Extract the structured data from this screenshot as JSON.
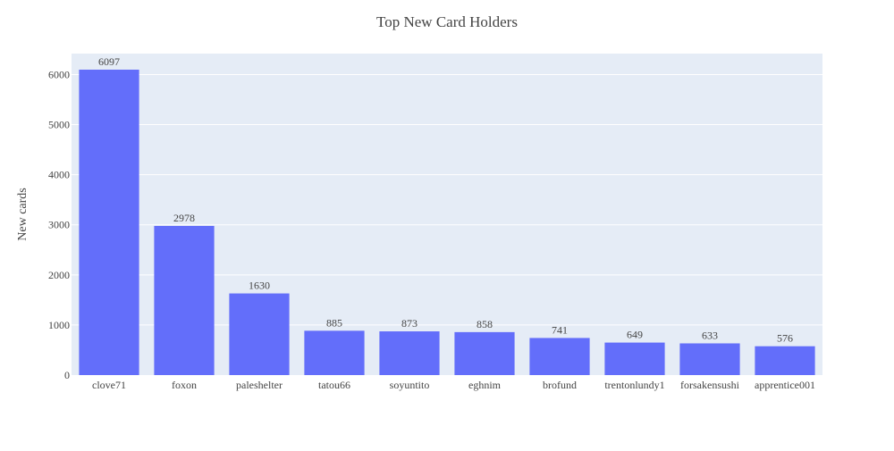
{
  "chart_data": {
    "type": "bar",
    "title": "Top New Card Holders",
    "xlabel": "",
    "ylabel": "New cards",
    "categories": [
      "clove71",
      "foxon",
      "paleshelter",
      "tatou66",
      "soyuntito",
      "eghnim",
      "brofund",
      "trentonlundy1",
      "forsakensushi",
      "apprentice001"
    ],
    "values": [
      6097,
      2978,
      1630,
      885,
      873,
      858,
      741,
      649,
      633,
      576
    ],
    "ylim": [
      0,
      6418
    ],
    "yticks": [
      0,
      1000,
      2000,
      3000,
      4000,
      5000,
      6000
    ],
    "grid": true,
    "colors": {
      "bar": "#636efa",
      "plot_bg": "#e5ecf6",
      "grid": "#ffffff",
      "text": "#444444"
    }
  }
}
